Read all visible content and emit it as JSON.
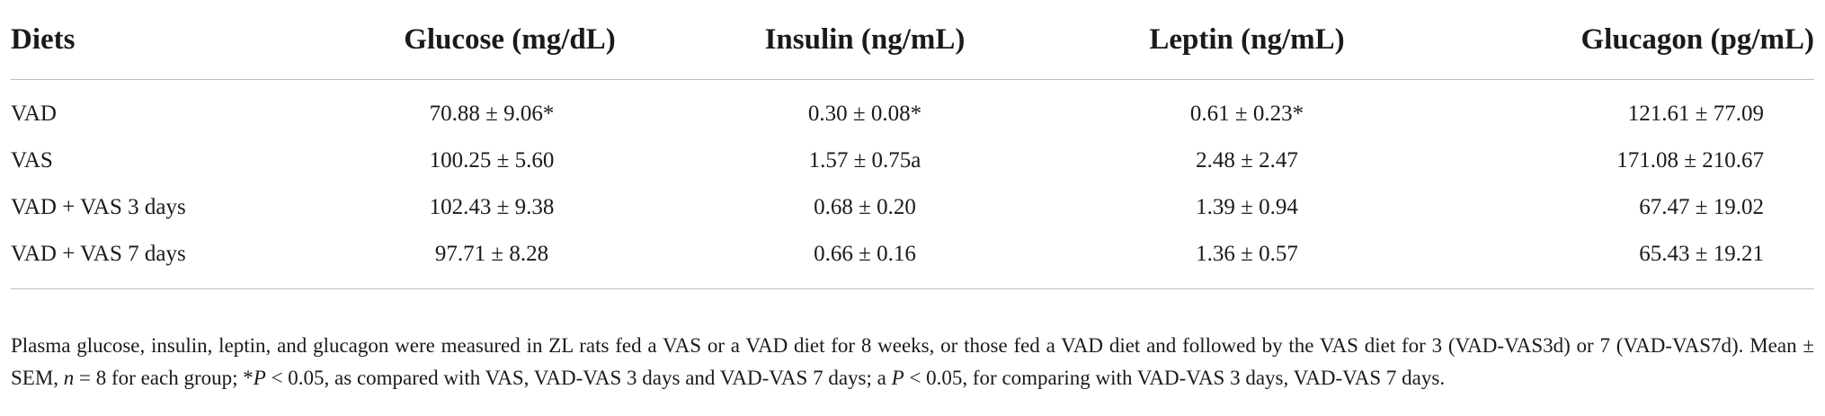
{
  "table": {
    "headers": [
      "Diets",
      "Glucose (mg/dL)",
      "Insulin (ng/mL)",
      "Leptin (ng/mL)",
      "Glucagon (pg/mL)"
    ],
    "rows": [
      [
        "VAD",
        "70.88 ± 9.06*",
        "0.30 ± 0.08*",
        "0.61 ± 0.23*",
        "121.61 ± 77.09"
      ],
      [
        "VAS",
        "100.25 ± 5.60",
        "1.57 ± 0.75a",
        "2.48 ± 2.47",
        "171.08 ± 210.67"
      ],
      [
        "VAD + VAS 3 days",
        "102.43 ± 9.38",
        "0.68 ± 0.20",
        "1.39 ± 0.94",
        "67.47 ± 19.02"
      ],
      [
        "VAD + VAS 7 days",
        "97.71 ± 8.28",
        "0.66 ± 0.16",
        "1.36 ± 0.57",
        "65.43 ± 19.21"
      ]
    ]
  },
  "footnote": {
    "p1": "Plasma glucose, insulin, leptin, and glucagon were measured in ZL rats fed a VAS or a VAD diet for 8 weeks, or those fed a VAD diet and followed by the VAS diet for 3 (VAD-VAS3d) or 7 (VAD-VAS7d). Mean ± SEM, ",
    "n": "n",
    "p2": " = 8 for each group; *",
    "P1": "P",
    "p3": " < 0.05, as compared with VAS, VAD-VAS 3 days and VAD-VAS 7 days; a ",
    "P2": "P",
    "p4": " < 0.05, for comparing with VAD-VAS 3 days, VAD-VAS 7 days."
  }
}
